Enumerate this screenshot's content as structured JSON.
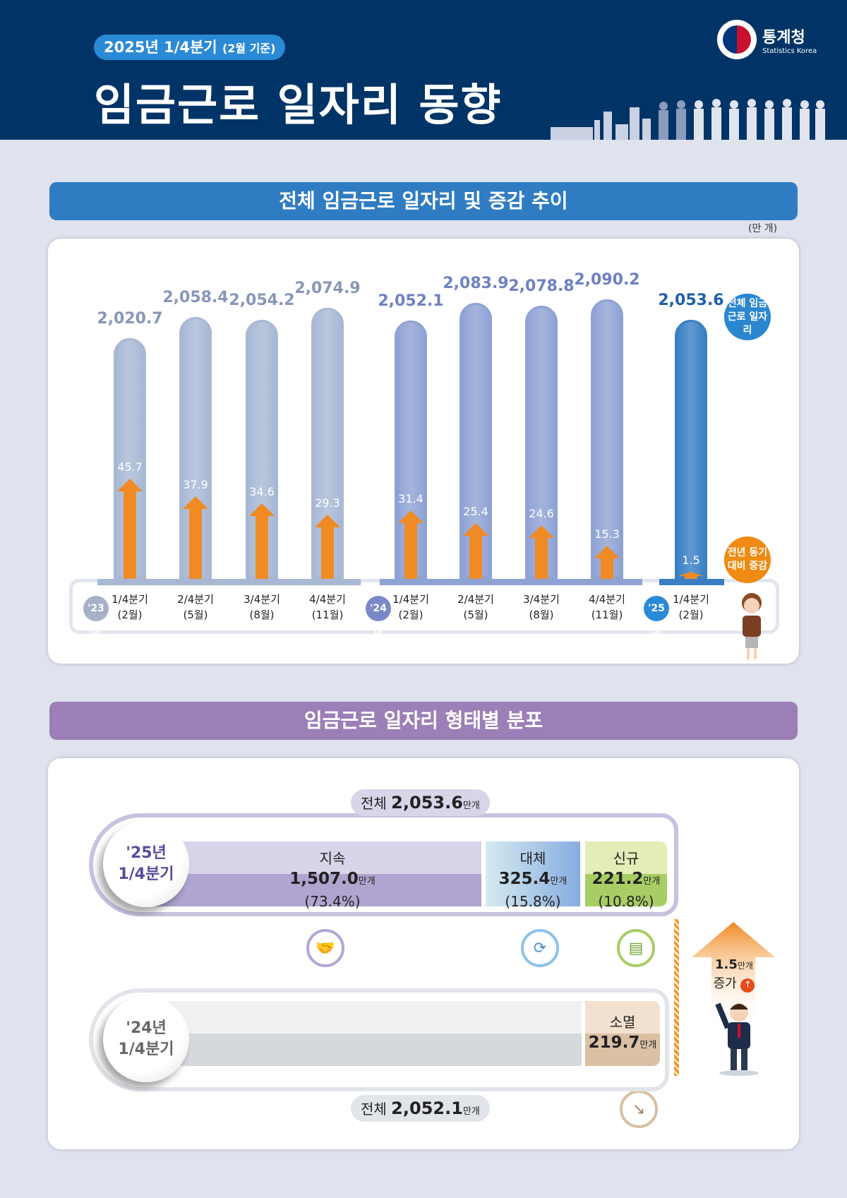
{
  "header": {
    "badge": "2025년 1/4분기",
    "badge_sub": "(2월 기준)",
    "title": "임금근로 일자리 동향",
    "logo_name": "통계청",
    "logo_en": "Statistics Korea"
  },
  "section1": {
    "title": "전체 임금근로 일자리 및 증감 추이",
    "unit": "(만 개)",
    "legend_total": "전체 임금근로 일자리",
    "legend_change": "전년 동기대비 증감"
  },
  "chart_data": {
    "type": "bar",
    "unit": "(만 개)",
    "categories": [
      "1/4분기 (2월)",
      "2/4분기 (5월)",
      "3/4분기 (8월)",
      "4/4분기 (11월)",
      "1/4분기 (2월)",
      "2/4분기 (5월)",
      "3/4분기 (8월)",
      "4/4분기 (11월)",
      "1/4분기 (2월)"
    ],
    "quarters": [
      {
        "q": "1/4분기",
        "m": "(2월)"
      },
      {
        "q": "2/4분기",
        "m": "(5월)"
      },
      {
        "q": "3/4분기",
        "m": "(8월)"
      },
      {
        "q": "4/4분기",
        "m": "(11월)"
      },
      {
        "q": "1/4분기",
        "m": "(2월)"
      },
      {
        "q": "2/4분기",
        "m": "(5월)"
      },
      {
        "q": "3/4분기",
        "m": "(8월)"
      },
      {
        "q": "4/4분기",
        "m": "(11월)"
      },
      {
        "q": "1/4분기",
        "m": "(2월)"
      }
    ],
    "years": [
      "'23년",
      "'24년",
      "'25년"
    ],
    "series": [
      {
        "name": "전체 임금근로 일자리",
        "values": [
          2020.7,
          2058.4,
          2054.2,
          2074.9,
          2052.1,
          2083.9,
          2078.8,
          2090.2,
          2053.6
        ],
        "labels": [
          "2,020.7",
          "2,058.4",
          "2,054.2",
          "2,074.9",
          "2,052.1",
          "2,083.9",
          "2,078.8",
          "2,090.2",
          "2,053.6"
        ]
      },
      {
        "name": "전년 동기대비 증감",
        "values": [
          45.7,
          37.9,
          34.6,
          29.3,
          31.4,
          25.4,
          24.6,
          15.3,
          1.5
        ],
        "labels": [
          "45.7",
          "37.9",
          "34.6",
          "29.3",
          "31.4",
          "25.4",
          "24.6",
          "15.3",
          "1.5"
        ]
      }
    ],
    "colors": {
      "y2023": "#a8b8d4",
      "y2024": "#8fa2d4",
      "y2025": "#3a7fc4",
      "arrow": "#f08a24"
    }
  },
  "section2": {
    "title": "임금근로 일자리 형태별 분포",
    "total25": {
      "prefix": "전체",
      "value": "2,053.6",
      "unit": "만개"
    },
    "total24": {
      "prefix": "전체",
      "value": "2,052.1",
      "unit": "만개"
    },
    "row25": {
      "year": "'25년",
      "quarter": "1/4분기"
    },
    "row24": {
      "year": "'24년",
      "quarter": "1/4분기"
    },
    "segments": [
      {
        "name": "지속",
        "value": "1,507.0",
        "unit": "만개",
        "pct": "(73.4%)"
      },
      {
        "name": "대체",
        "value": "325.4",
        "unit": "만개",
        "pct": "(15.8%)"
      },
      {
        "name": "신규",
        "value": "221.2",
        "unit": "만개",
        "pct": "(10.8%)"
      }
    ],
    "extinct": {
      "name": "소멸",
      "value": "219.7",
      "unit": "만개"
    },
    "increase": {
      "value": "1.5",
      "unit": "만개",
      "label": "증가"
    }
  }
}
